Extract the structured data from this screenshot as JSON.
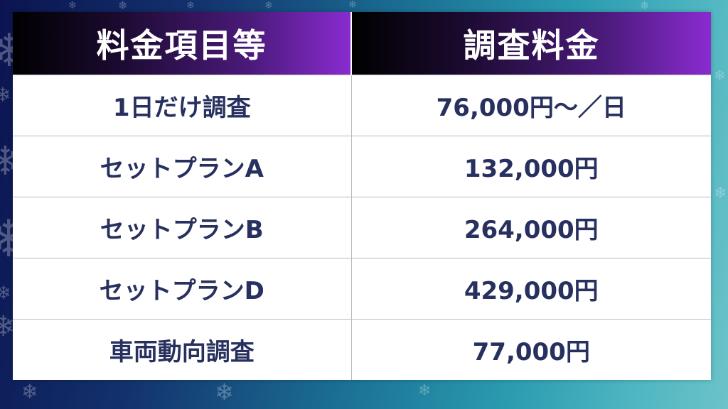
{
  "table": {
    "headers": [
      "料金項目等",
      "調査料金"
    ],
    "rows": [
      [
        "1日だけ調査",
        "76,000円～／日"
      ],
      [
        "セットプランA",
        "132,000円"
      ],
      [
        "セットプランB",
        "264,000円"
      ],
      [
        "セットプランD",
        "429,000円"
      ],
      [
        "車両動向調査",
        "77,000円"
      ]
    ]
  },
  "decoration": {
    "icon": "snowflake-icon",
    "glyph": "❄"
  },
  "colors": {
    "header_gradient_start": "#000000",
    "header_gradient_end": "#8a2bd0",
    "cell_text": "#27305e",
    "background_left": "#0b1450",
    "background_right": "#6cc3c9"
  }
}
